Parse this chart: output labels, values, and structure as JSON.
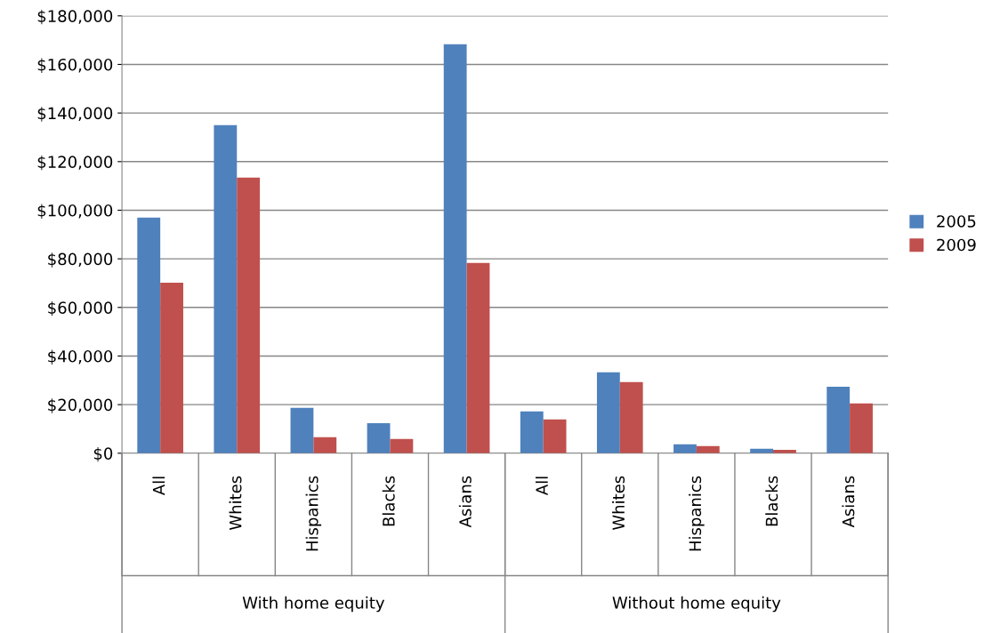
{
  "chart_data": {
    "type": "bar",
    "categories": [
      "All",
      "Whites",
      "Hispanics",
      "Blacks",
      "Asians",
      "All",
      "Whites",
      "Hispanics",
      "Blacks",
      "Asians"
    ],
    "series": [
      {
        "name": "2005",
        "color": "#4f81bd",
        "values": [
          97000,
          135000,
          18700,
          12400,
          168300,
          17200,
          33300,
          3700,
          1800,
          27400
        ]
      },
      {
        "name": "2009",
        "color": "#c0504d",
        "values": [
          70200,
          113400,
          6600,
          5900,
          78300,
          13900,
          29300,
          2900,
          1400,
          20500
        ]
      }
    ],
    "annotations": [
      "With home equity",
      "Without home equity"
    ],
    "ylim": [
      0,
      180000
    ],
    "yticks": [
      {
        "value": 0,
        "label": "$0"
      },
      {
        "value": 20000,
        "label": "$20,000"
      },
      {
        "value": 40000,
        "label": "$40,000"
      },
      {
        "value": 60000,
        "label": "$60,000"
      },
      {
        "value": 80000,
        "label": "$80,000"
      },
      {
        "value": 100000,
        "label": "$100,000"
      },
      {
        "value": 120000,
        "label": "$120,000"
      },
      {
        "value": 140000,
        "label": "$140,000"
      },
      {
        "value": 160000,
        "label": "$160,000"
      },
      {
        "value": 180000,
        "label": "$180,000"
      }
    ],
    "grid": "y",
    "legend": "right"
  }
}
